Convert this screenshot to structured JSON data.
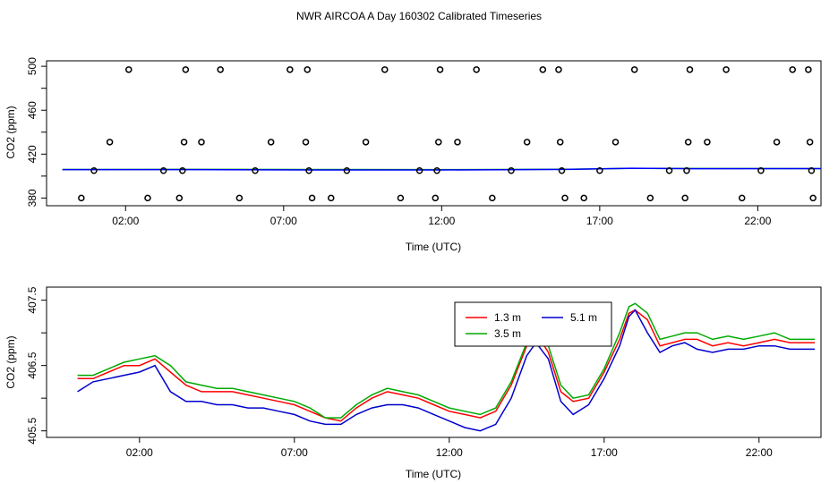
{
  "title": "NWR AIRCOA A  Day 160302  Calibrated Timeseries",
  "chart_data": [
    {
      "type": "scatter",
      "xlabel": "Time (UTC)",
      "ylabel": "CO2 (ppm)",
      "xlim": [
        -0.5,
        24.0
      ],
      "ylim": [
        373,
        505
      ],
      "xticks": [
        2,
        7,
        12,
        17,
        22
      ],
      "xtick_labels": [
        "02:00",
        "07:00",
        "12:00",
        "17:00",
        "22:00"
      ],
      "yticks": [
        380,
        420,
        460,
        500
      ],
      "ytick_labels": [
        "380",
        "420",
        "460",
        "500"
      ],
      "yticks_minor": [
        400,
        440,
        480
      ],
      "flag_points": [
        {
          "x": 0.6,
          "y": 380
        },
        {
          "x": 1.0,
          "y": 405
        },
        {
          "x": 1.5,
          "y": 431
        },
        {
          "x": 2.1,
          "y": 497
        },
        {
          "x": 2.7,
          "y": 380
        },
        {
          "x": 3.2,
          "y": 405
        },
        {
          "x": 3.7,
          "y": 380
        },
        {
          "x": 3.8,
          "y": 405
        },
        {
          "x": 3.85,
          "y": 431
        },
        {
          "x": 3.9,
          "y": 497
        },
        {
          "x": 4.4,
          "y": 431
        },
        {
          "x": 5.0,
          "y": 497
        },
        {
          "x": 5.6,
          "y": 380
        },
        {
          "x": 6.1,
          "y": 405
        },
        {
          "x": 6.6,
          "y": 431
        },
        {
          "x": 7.2,
          "y": 497
        },
        {
          "x": 7.7,
          "y": 431
        },
        {
          "x": 7.75,
          "y": 497
        },
        {
          "x": 7.8,
          "y": 405
        },
        {
          "x": 7.9,
          "y": 380
        },
        {
          "x": 8.5,
          "y": 380
        },
        {
          "x": 9.0,
          "y": 405
        },
        {
          "x": 9.6,
          "y": 431
        },
        {
          "x": 10.2,
          "y": 497
        },
        {
          "x": 10.7,
          "y": 380
        },
        {
          "x": 11.3,
          "y": 405
        },
        {
          "x": 11.8,
          "y": 380
        },
        {
          "x": 11.85,
          "y": 405
        },
        {
          "x": 11.9,
          "y": 431
        },
        {
          "x": 11.95,
          "y": 497
        },
        {
          "x": 12.5,
          "y": 431
        },
        {
          "x": 13.1,
          "y": 497
        },
        {
          "x": 13.6,
          "y": 380
        },
        {
          "x": 14.2,
          "y": 405
        },
        {
          "x": 14.7,
          "y": 431
        },
        {
          "x": 15.2,
          "y": 497
        },
        {
          "x": 15.7,
          "y": 497
        },
        {
          "x": 15.75,
          "y": 431
        },
        {
          "x": 15.8,
          "y": 405
        },
        {
          "x": 15.9,
          "y": 380
        },
        {
          "x": 16.5,
          "y": 380
        },
        {
          "x": 17.0,
          "y": 405
        },
        {
          "x": 17.5,
          "y": 431
        },
        {
          "x": 18.1,
          "y": 497
        },
        {
          "x": 18.6,
          "y": 380
        },
        {
          "x": 19.2,
          "y": 405
        },
        {
          "x": 19.7,
          "y": 380
        },
        {
          "x": 19.75,
          "y": 405
        },
        {
          "x": 19.8,
          "y": 431
        },
        {
          "x": 19.85,
          "y": 497
        },
        {
          "x": 20.4,
          "y": 431
        },
        {
          "x": 21.0,
          "y": 497
        },
        {
          "x": 21.5,
          "y": 380
        },
        {
          "x": 22.1,
          "y": 405
        },
        {
          "x": 22.6,
          "y": 431
        },
        {
          "x": 23.1,
          "y": 497
        },
        {
          "x": 23.6,
          "y": 497
        },
        {
          "x": 23.65,
          "y": 431
        },
        {
          "x": 23.7,
          "y": 405
        },
        {
          "x": 23.75,
          "y": 380
        }
      ],
      "series": [
        {
          "color": "#00aa00",
          "x": [
            0,
            4,
            8,
            12,
            16,
            18,
            20,
            24
          ],
          "values": [
            406.0,
            406.1,
            406.0,
            405.9,
            406.2,
            407.0,
            406.9,
            406.8
          ]
        },
        {
          "color": "#0000ff",
          "x": [
            0,
            4,
            8,
            12,
            16,
            18,
            20,
            24
          ],
          "values": [
            405.9,
            405.9,
            405.6,
            405.6,
            406.1,
            407.1,
            406.7,
            406.8
          ]
        }
      ]
    },
    {
      "type": "line",
      "xlabel": "Time (UTC)",
      "ylabel": "CO2 (ppm)",
      "xlim": [
        -1,
        24.0
      ],
      "ylim": [
        405.4,
        407.7
      ],
      "xticks": [
        2,
        7,
        12,
        17,
        22
      ],
      "xtick_labels": [
        "02:00",
        "07:00",
        "12:00",
        "17:00",
        "22:00"
      ],
      "yticks": [
        405.5,
        406.5,
        407.5
      ],
      "ytick_labels": [
        "405.5",
        "406.5",
        "407.5"
      ],
      "yticks_minor": [
        406.0,
        407.0
      ],
      "legend": {
        "position": "top-center",
        "columns": 2
      },
      "series": [
        {
          "name": "1.3 m",
          "color": "#ff0000",
          "x": [
            0,
            0.5,
            1,
            1.5,
            2,
            2.5,
            3,
            3.5,
            4,
            4.5,
            5,
            5.5,
            6,
            6.5,
            7,
            7.5,
            8,
            8.5,
            9,
            9.5,
            10,
            10.5,
            11,
            11.5,
            12,
            12.5,
            13,
            13.5,
            14,
            14.5,
            14.8,
            15.2,
            15.6,
            16,
            16.5,
            17,
            17.5,
            17.8,
            18,
            18.4,
            18.8,
            19.2,
            19.6,
            20,
            20.5,
            21,
            21.5,
            22,
            22.5,
            23,
            23.5,
            23.8
          ],
          "values": [
            406.3,
            406.3,
            406.4,
            406.5,
            406.5,
            406.6,
            406.4,
            406.2,
            406.1,
            406.1,
            406.1,
            406.05,
            406.0,
            405.95,
            405.9,
            405.8,
            405.7,
            405.65,
            405.85,
            406.0,
            406.1,
            406.05,
            406.0,
            405.9,
            405.8,
            405.75,
            405.7,
            405.8,
            406.2,
            406.8,
            407.0,
            406.7,
            406.1,
            405.95,
            406.0,
            406.4,
            406.9,
            407.3,
            407.35,
            407.2,
            406.8,
            406.85,
            406.9,
            406.9,
            406.8,
            406.85,
            406.8,
            406.85,
            406.9,
            406.85,
            406.85,
            406.85
          ]
        },
        {
          "name": "3.5 m",
          "color": "#00aa00",
          "x": [
            0,
            0.5,
            1,
            1.5,
            2,
            2.5,
            3,
            3.5,
            4,
            4.5,
            5,
            5.5,
            6,
            6.5,
            7,
            7.5,
            8,
            8.5,
            9,
            9.5,
            10,
            10.5,
            11,
            11.5,
            12,
            12.5,
            13,
            13.5,
            14,
            14.5,
            14.8,
            15.2,
            15.6,
            16,
            16.5,
            17,
            17.5,
            17.8,
            18,
            18.4,
            18.8,
            19.2,
            19.6,
            20,
            20.5,
            21,
            21.5,
            22,
            22.5,
            23,
            23.5,
            23.8
          ],
          "values": [
            406.35,
            406.35,
            406.45,
            406.55,
            406.6,
            406.65,
            406.5,
            406.25,
            406.2,
            406.15,
            406.15,
            406.1,
            406.05,
            406.0,
            405.95,
            405.85,
            405.7,
            405.7,
            405.9,
            406.05,
            406.15,
            406.1,
            406.05,
            405.95,
            405.85,
            405.8,
            405.75,
            405.85,
            406.25,
            406.85,
            407.05,
            406.8,
            406.2,
            406.0,
            406.05,
            406.45,
            407.0,
            407.4,
            407.45,
            407.3,
            406.9,
            406.95,
            407.0,
            407.0,
            406.9,
            406.95,
            406.9,
            406.95,
            407.0,
            406.9,
            406.9,
            406.9
          ]
        },
        {
          "name": "5.1 m",
          "color": "#0000cc",
          "x": [
            0,
            0.5,
            1,
            1.5,
            2,
            2.5,
            3,
            3.5,
            4,
            4.5,
            5,
            5.5,
            6,
            6.5,
            7,
            7.5,
            8,
            8.5,
            9,
            9.5,
            10,
            10.5,
            11,
            11.5,
            12,
            12.5,
            13,
            13.5,
            14,
            14.5,
            14.8,
            15.2,
            15.6,
            16,
            16.5,
            17,
            17.5,
            17.8,
            18,
            18.4,
            18.8,
            19.2,
            19.6,
            20,
            20.5,
            21,
            21.5,
            22,
            22.5,
            23,
            23.5,
            23.8
          ],
          "values": [
            406.1,
            406.25,
            406.3,
            406.35,
            406.4,
            406.5,
            406.1,
            405.95,
            405.95,
            405.9,
            405.9,
            405.85,
            405.85,
            405.8,
            405.75,
            405.65,
            405.6,
            405.6,
            405.75,
            405.85,
            405.9,
            405.9,
            405.85,
            405.75,
            405.65,
            405.55,
            405.5,
            405.6,
            406.0,
            406.65,
            406.85,
            406.6,
            405.95,
            405.75,
            405.9,
            406.3,
            406.8,
            407.25,
            407.35,
            407.0,
            406.7,
            406.8,
            406.85,
            406.75,
            406.7,
            406.75,
            406.75,
            406.8,
            406.8,
            406.75,
            406.75,
            406.75
          ]
        }
      ]
    }
  ]
}
